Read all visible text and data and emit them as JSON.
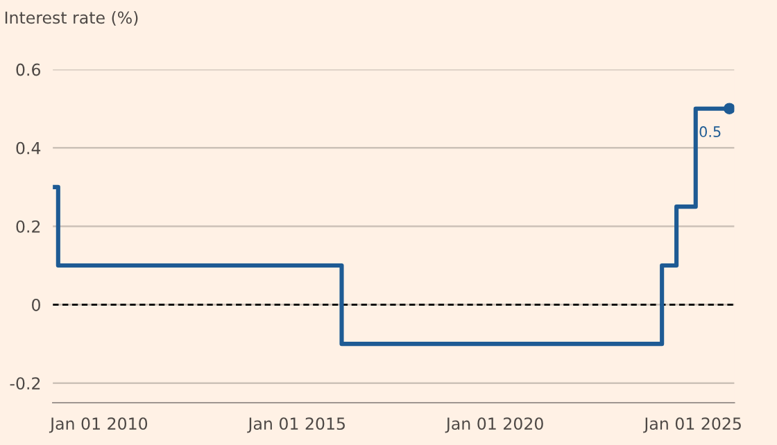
{
  "chart_data": {
    "type": "step",
    "ylabel": "Interest rate (%)",
    "x": [
      "2008-10-31",
      "2008-12-19",
      "2016-02-16",
      "2024-03-19",
      "2024-07-31",
      "2025-01-24",
      "2025-12-01"
    ],
    "series": [
      {
        "color": "#1e5b94",
        "values": [
          0.3,
          0.1,
          -0.1,
          0.1,
          0.25,
          0.5,
          0.5
        ]
      }
    ],
    "xlim": [
      "2008-10-31",
      "2026-01-15"
    ],
    "xticks": [
      {
        "value": "2010-01-01",
        "label": "Jan 01 2010"
      },
      {
        "value": "2015-01-01",
        "label": "Jan 01 2015"
      },
      {
        "value": "2020-01-01",
        "label": "Jan 01 2020"
      },
      {
        "value": "2025-01-01",
        "label": "Jan 01 2025"
      }
    ],
    "ylim": [
      -0.25,
      0.6
    ],
    "yticks": [
      -0.2,
      0,
      0.2,
      0.4,
      0.6
    ],
    "ref_lines": [
      {
        "axis": "y",
        "value": 0,
        "color": "#000000",
        "line_style": "dashed"
      }
    ],
    "annotations": [
      {
        "text": "0.5",
        "x": "2025-12-01",
        "y": 0.5
      }
    ],
    "grid": "y"
  }
}
